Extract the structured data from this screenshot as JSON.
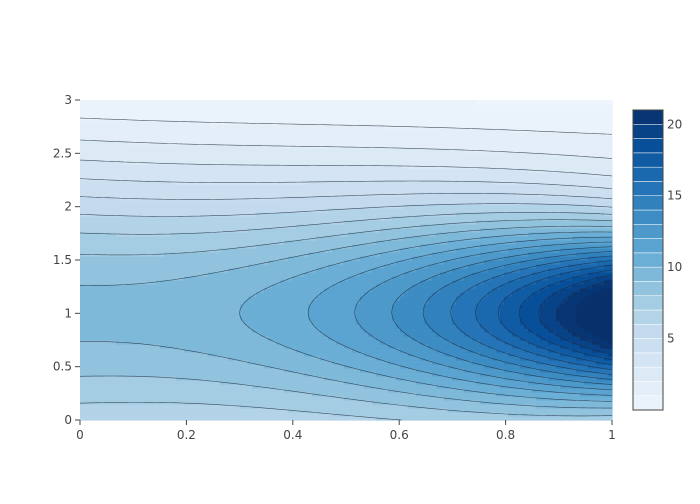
{
  "chart_data": {
    "type": "contour",
    "title": "",
    "xlabel": "",
    "ylabel": "",
    "x_ticks": [
      0,
      0.2,
      0.4,
      0.6,
      0.8,
      1
    ],
    "x_tick_labels": [
      "0",
      "0.2",
      "0.4",
      "0.6",
      "0.8",
      "1"
    ],
    "y_ticks": [
      0,
      0.5,
      1,
      1.5,
      2,
      2.5,
      3
    ],
    "y_tick_labels": [
      "0",
      "0.5",
      "1",
      "1.5",
      "2",
      "2.5",
      "3"
    ],
    "xlim": [
      0,
      1
    ],
    "ylim": [
      0,
      3
    ],
    "zlim": [
      0,
      21
    ],
    "level_step": 1,
    "colorbar": {
      "tick_values": [
        5,
        10,
        15,
        20
      ],
      "tick_labels": [
        "5",
        "10",
        "15",
        "20"
      ],
      "range": [
        0,
        21
      ]
    },
    "colorscale": [
      "#eef5fd",
      "#dbe9f6",
      "#c6dbef",
      "#9ecae1",
      "#6baed6",
      "#4292c6",
      "#2171b5",
      "#08519c",
      "#08306b"
    ],
    "contour_line_color": "#1f2a3a",
    "function_description_values": {
      "peak_x": 1,
      "peak_y": 1,
      "peak_z": 19.3
    }
  }
}
